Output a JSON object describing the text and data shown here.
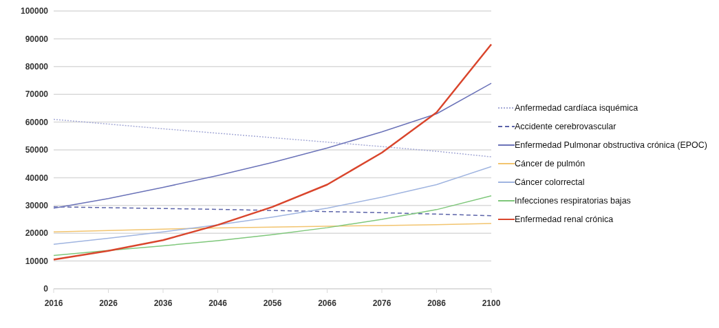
{
  "chart_data": {
    "type": "line",
    "categories": [
      "2016",
      "2026",
      "2036",
      "2046",
      "2056",
      "2066",
      "2076",
      "2086",
      "2100"
    ],
    "ylim": [
      0,
      100000
    ],
    "yticks": [
      0,
      10000,
      20000,
      30000,
      40000,
      50000,
      60000,
      70000,
      80000,
      90000,
      100000
    ],
    "grid": "y",
    "legend": "right",
    "marker": "none",
    "series": [
      {
        "name": "Anfermedad cardíaca isquémica",
        "color": "#a4a9d6",
        "line_style": "dotted",
        "values": [
          61000,
          59300,
          57600,
          56000,
          54400,
          52800,
          51200,
          49500,
          47500
        ]
      },
      {
        "name": "Accidente cerebrovascular",
        "color": "#5a62a8",
        "line_style": "dashed",
        "values": [
          29500,
          29200,
          28900,
          28600,
          28200,
          27800,
          27400,
          26900,
          26300
        ]
      },
      {
        "name": "Enfermedad Pulmonar obstructiva crónica (EPOC)",
        "color": "#6a72b8",
        "line_style": "solid",
        "values": [
          29000,
          32500,
          36500,
          40800,
          45500,
          50700,
          56500,
          63000,
          74000
        ]
      },
      {
        "name": "Cáncer de pulmón",
        "color": "#f2c46e",
        "line_style": "solid",
        "values": [
          20500,
          21000,
          21500,
          21900,
          22200,
          22500,
          22800,
          23100,
          23500
        ]
      },
      {
        "name": "Cáncer colorrectal",
        "color": "#9fb4e0",
        "line_style": "solid",
        "values": [
          16000,
          18200,
          20500,
          23000,
          25800,
          29000,
          33000,
          37500,
          44000
        ]
      },
      {
        "name": "Infecciones respiratorias bajas",
        "color": "#7ec77a",
        "line_style": "solid",
        "values": [
          12000,
          13800,
          15500,
          17300,
          19500,
          22000,
          25000,
          28500,
          33500
        ]
      },
      {
        "name": "Enfermedad renal crónica",
        "color": "#d9452c",
        "line_style": "solid",
        "values": [
          10500,
          13700,
          17500,
          23000,
          29500,
          37500,
          49000,
          63500,
          88000
        ]
      }
    ]
  }
}
